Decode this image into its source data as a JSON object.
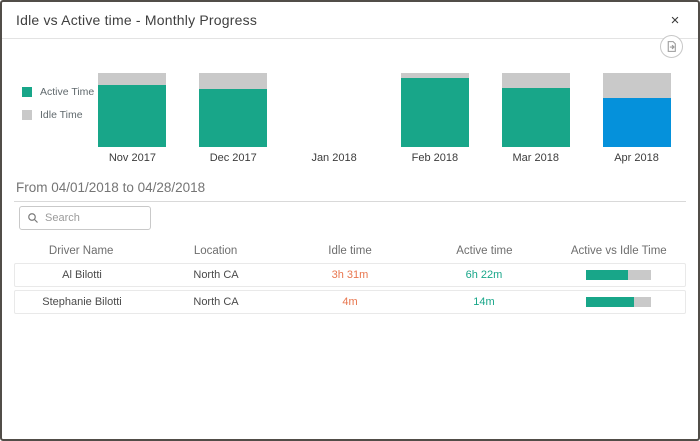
{
  "modal": {
    "title": "Idle vs Active time - Monthly Progress",
    "close_label": "×"
  },
  "filter": {
    "date_range": "From 04/01/2018 to 04/28/2018"
  },
  "search": {
    "placeholder": "Search"
  },
  "chart_data": {
    "type": "bar",
    "stacked": true,
    "percent": true,
    "title": "Idle vs Active time - Monthly Progress",
    "categories": [
      "Nov 2017",
      "Dec 2017",
      "Jan 2018",
      "Feb 2018",
      "Mar 2018",
      "Apr 2018"
    ],
    "series": [
      {
        "name": "Active Time",
        "values": [
          84,
          78,
          null,
          93,
          80,
          66
        ]
      },
      {
        "name": "Idle Time",
        "values": [
          16,
          22,
          null,
          7,
          20,
          34
        ]
      }
    ],
    "legend": [
      {
        "label": "Active Time",
        "color": "#18a689"
      },
      {
        "label": "Idle Time",
        "color": "#c9c9c9"
      }
    ],
    "legend_position": "left",
    "ylim": [
      0,
      100
    ],
    "grid": false,
    "months": [
      {
        "label": "Nov 2017",
        "active_pct": 84,
        "idle_pct": 16
      },
      {
        "label": "Dec 2017",
        "active_pct": 78,
        "idle_pct": 22
      },
      {
        "label": "Jan 2018",
        "active_pct": null,
        "idle_pct": null
      },
      {
        "label": "Feb 2018",
        "active_pct": 93,
        "idle_pct": 7
      },
      {
        "label": "Mar 2018",
        "active_pct": 80,
        "idle_pct": 20
      },
      {
        "label": "Apr 2018",
        "active_pct": 66,
        "idle_pct": 34,
        "selected": true
      }
    ]
  },
  "table": {
    "headers": [
      "Driver Name",
      "Location",
      "Idle time",
      "Active time",
      "Active vs Idle Time"
    ],
    "rows": [
      {
        "driver": "Al Bilotti",
        "location": "North CA",
        "idle_time": "3h 31m",
        "active_time": "6h 22m",
        "active_ratio_pct": 66
      },
      {
        "driver": "Stephanie Bilotti",
        "location": "North CA",
        "idle_time": "4m",
        "active_time": "14m",
        "active_ratio_pct": 75
      }
    ]
  },
  "colors": {
    "active_teal": "#18a689",
    "idle_gray": "#c9c9c9",
    "selected_blue": "#0591db",
    "idle_text_orange": "#e8764e",
    "active_text_teal": "#18a689"
  }
}
